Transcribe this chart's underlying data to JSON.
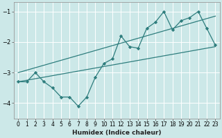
{
  "xlabel": "Humidex (Indice chaleur)",
  "background_color": "#cce8e8",
  "grid_color": "#ffffff",
  "line_color": "#2e7d7d",
  "xlim": [
    -0.5,
    23.5
  ],
  "ylim": [
    -4.5,
    -0.7
  ],
  "yticks": [
    -4,
    -3,
    -2,
    -1
  ],
  "xticks": [
    0,
    1,
    2,
    3,
    4,
    5,
    6,
    7,
    8,
    9,
    10,
    11,
    12,
    13,
    14,
    15,
    16,
    17,
    18,
    19,
    20,
    21,
    22,
    23
  ],
  "main_x": [
    0,
    1,
    2,
    3,
    4,
    5,
    6,
    7,
    8,
    9,
    10,
    11,
    12,
    13,
    14,
    15,
    16,
    17,
    18,
    19,
    20,
    21,
    22,
    23
  ],
  "main_y": [
    -3.3,
    -3.3,
    -3.0,
    -3.3,
    -3.5,
    -3.8,
    -3.8,
    -4.1,
    -3.8,
    -3.15,
    -2.7,
    -2.55,
    -1.8,
    -2.15,
    -2.2,
    -1.55,
    -1.35,
    -1.0,
    -1.6,
    -1.3,
    -1.2,
    -1.0,
    -1.55,
    -2.1
  ],
  "trend1_x": [
    0,
    23
  ],
  "trend1_y": [
    -3.0,
    -1.15
  ],
  "trend2_x": [
    0,
    23
  ],
  "trend2_y": [
    -3.3,
    -2.15
  ],
  "marker": "D",
  "markersize": 2.2,
  "linewidth": 0.9,
  "xlabel_fontsize": 6.5,
  "xlabel_fontweight": "bold",
  "tick_fontsize": 5.5
}
